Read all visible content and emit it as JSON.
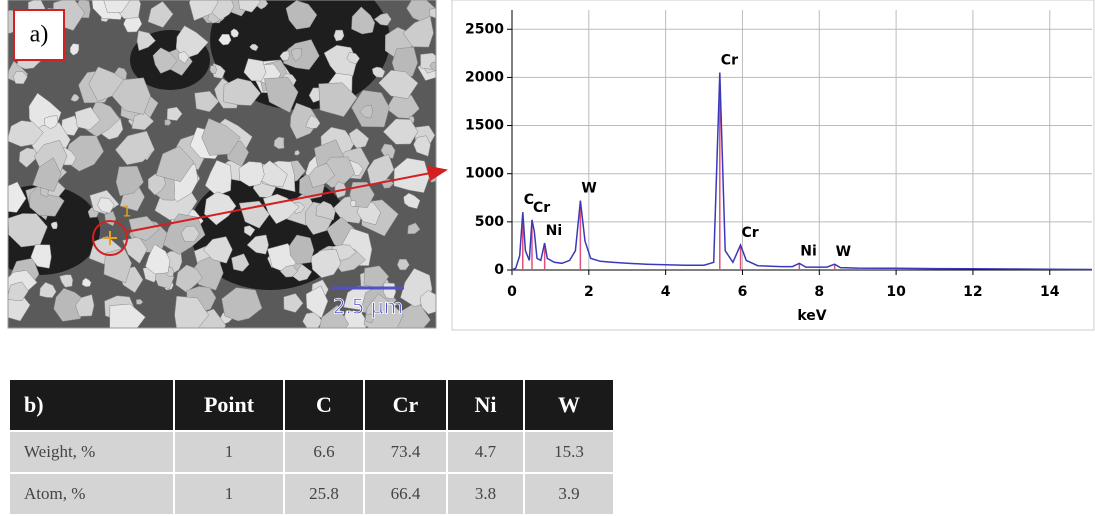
{
  "image": {
    "panel_label": "a)",
    "point_label": "1",
    "scale_bar": "2.5 µm"
  },
  "chart_data": {
    "type": "line",
    "xlabel": "keV",
    "x": [
      0,
      0.1,
      0.2,
      0.28,
      0.35,
      0.45,
      0.52,
      0.58,
      0.65,
      0.75,
      0.85,
      0.92,
      1.1,
      1.3,
      1.5,
      1.65,
      1.78,
      1.9,
      2.05,
      2.3,
      2.6,
      3,
      3.5,
      4,
      4.5,
      5,
      5.25,
      5.41,
      5.55,
      5.75,
      5.95,
      6.1,
      6.4,
      7,
      7.3,
      7.48,
      7.65,
      8.2,
      8.4,
      8.55,
      9,
      10,
      11,
      12,
      13,
      14,
      15.1
    ],
    "series": [
      {
        "color": "#3a3ab8",
        "values": [
          0,
          20,
          150,
          600,
          200,
          100,
          520,
          400,
          120,
          100,
          280,
          120,
          80,
          70,
          100,
          200,
          720,
          300,
          120,
          90,
          80,
          70,
          60,
          55,
          50,
          50,
          80,
          2050,
          200,
          80,
          260,
          100,
          45,
          35,
          35,
          70,
          30,
          30,
          60,
          25,
          20,
          18,
          15,
          12,
          10,
          8,
          5
        ]
      }
    ],
    "annotations": [
      {
        "text": "C",
        "x": 0.28,
        "y": 600
      },
      {
        "text": "Cr",
        "x": 0.52,
        "y": 520
      },
      {
        "text": "Ni",
        "x": 0.85,
        "y": 280
      },
      {
        "text": "W",
        "x": 1.78,
        "y": 720
      },
      {
        "text": "Cr",
        "x": 5.41,
        "y": 2050
      },
      {
        "text": "Cr",
        "x": 5.95,
        "y": 260
      },
      {
        "text": "Ni",
        "x": 7.48,
        "y": 70
      },
      {
        "text": "W",
        "x": 8.4,
        "y": 60
      }
    ],
    "annotation_color": "#e0507a",
    "xlim": [
      0,
      15.1
    ],
    "ylim": [
      0,
      2700
    ],
    "xticks": [
      0,
      2,
      4,
      6,
      8,
      10,
      12,
      14
    ],
    "yticks": [
      0,
      500,
      1000,
      1500,
      2000,
      2500
    ],
    "grid": true
  },
  "table": {
    "header": [
      "b)",
      "Point",
      "C",
      "Cr",
      "Ni",
      "W"
    ],
    "rows": [
      [
        "Weight, %",
        "1",
        "6.6",
        "73.4",
        "4.7",
        "15.3"
      ],
      [
        "Atom, %",
        "1",
        "25.8",
        "66.4",
        "3.8",
        "3.9"
      ]
    ]
  }
}
